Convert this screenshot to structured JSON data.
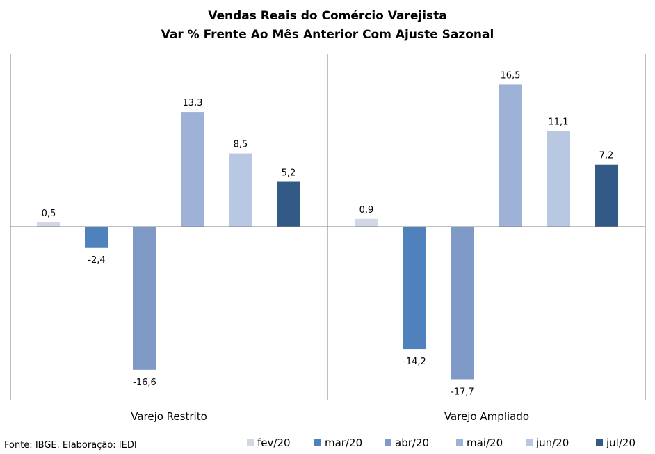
{
  "chart_data": {
    "type": "bar",
    "title": "Vendas Reais do Comércio Varejista",
    "subtitle": "Var % Frente Ao Mês Anterior Com Ajuste Sazonal",
    "categories": [
      "Varejo Restrito",
      "Varejo Ampliado"
    ],
    "series": [
      {
        "name": "fev/20",
        "values": [
          0.5,
          0.9
        ],
        "labels": [
          "0,5",
          "0,9"
        ],
        "color": "#d0d8e6"
      },
      {
        "name": "mar/20",
        "values": [
          -2.4,
          -14.2
        ],
        "labels": [
          "-2,4",
          "-14,2"
        ],
        "color": "#4f81bd"
      },
      {
        "name": "abr/20",
        "values": [
          -16.6,
          -17.7
        ],
        "labels": [
          "-16,6",
          "-17,7"
        ],
        "color": "#7f9ac7"
      },
      {
        "name": "mai/20",
        "values": [
          13.3,
          16.5
        ],
        "labels": [
          "13,3",
          "16,5"
        ],
        "color": "#9db2d6"
      },
      {
        "name": "jun/20",
        "values": [
          8.5,
          11.1
        ],
        "labels": [
          "8,5",
          "11,1"
        ],
        "color": "#b8c7e2"
      },
      {
        "name": "jul/20",
        "values": [
          5.2,
          7.2
        ],
        "labels": [
          "5,2",
          "7,2"
        ],
        "color": "#335a87"
      }
    ],
    "ylim": [
      -20,
      20
    ],
    "xlabel": "",
    "ylabel": "",
    "grid": false,
    "legend": "bottom",
    "source": "Fonte: IBGE. Elaboração: IEDI"
  }
}
